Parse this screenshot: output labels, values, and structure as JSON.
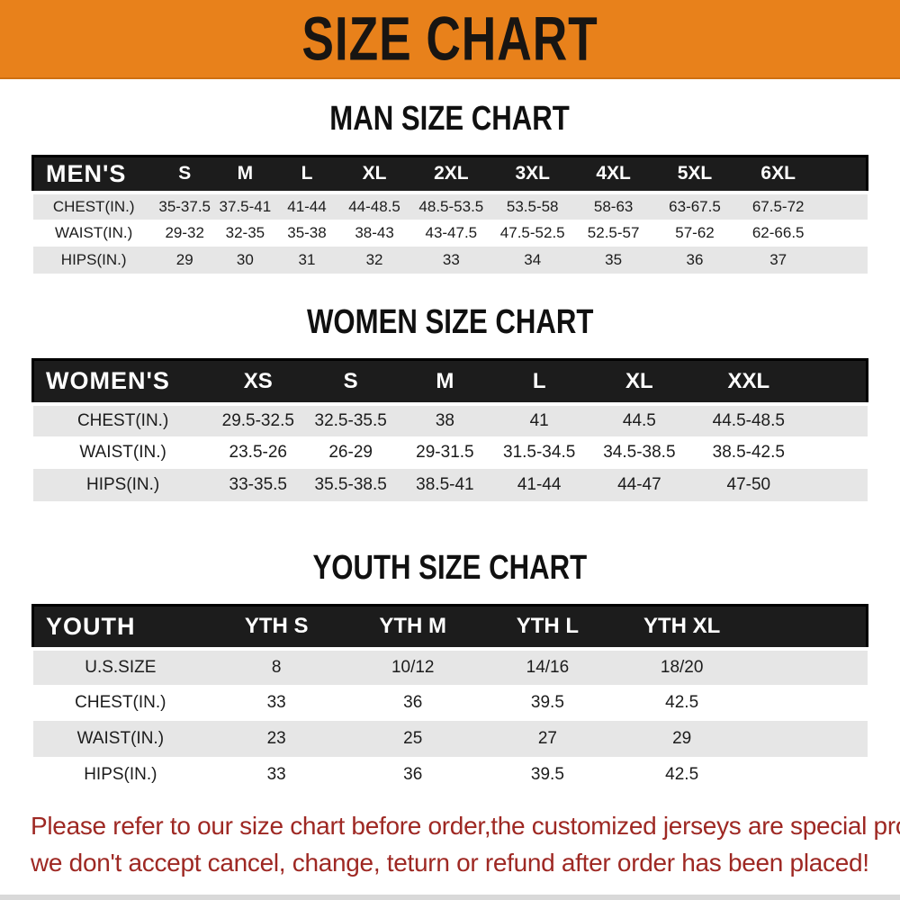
{
  "banner": {
    "title": "SIZE CHART",
    "bg_color": "#e8811b",
    "text_color": "#181512"
  },
  "tables": [
    {
      "title": "MAN SIZE CHART",
      "header_label": "MEN'S",
      "columns": [
        "S",
        "M",
        "L",
        "XL",
        "2XL",
        "3XL",
        "4XL",
        "5XL",
        "6XL"
      ],
      "rows": [
        {
          "label": "CHEST(IN.)",
          "values": [
            "35-37.5",
            "37.5-41",
            "41-44",
            "44-48.5",
            "48.5-53.5",
            "53.5-58",
            "58-63",
            "63-67.5",
            "67.5-72"
          ]
        },
        {
          "label": "WAIST(IN.)",
          "values": [
            "29-32",
            "32-35",
            "35-38",
            "38-43",
            "43-47.5",
            "47.5-52.5",
            "52.5-57",
            "57-62",
            "62-66.5"
          ]
        },
        {
          "label": "HIPS(IN.)",
          "values": [
            "29",
            "30",
            "31",
            "32",
            "33",
            "34",
            "35",
            "36",
            "37"
          ]
        }
      ]
    },
    {
      "title": "WOMEN SIZE CHART",
      "header_label": "WOMEN'S",
      "columns": [
        "XS",
        "S",
        "M",
        "L",
        "XL",
        "XXL"
      ],
      "rows": [
        {
          "label": "CHEST(IN.)",
          "values": [
            "29.5-32.5",
            "32.5-35.5",
            "38",
            "41",
            "44.5",
            "44.5-48.5"
          ]
        },
        {
          "label": "WAIST(IN.)",
          "values": [
            "23.5-26",
            "26-29",
            "29-31.5",
            "31.5-34.5",
            "34.5-38.5",
            "38.5-42.5"
          ]
        },
        {
          "label": "HIPS(IN.)",
          "values": [
            "33-35.5",
            "35.5-38.5",
            "38.5-41",
            "41-44",
            "44-47",
            "47-50"
          ]
        }
      ]
    },
    {
      "title": "YOUTH SIZE CHART",
      "header_label": "YOUTH",
      "columns": [
        "YTH S",
        "YTH M",
        "YTH L",
        "YTH XL"
      ],
      "rows": [
        {
          "label": "U.S.SIZE",
          "values": [
            "8",
            "10/12",
            "14/16",
            "18/20"
          ]
        },
        {
          "label": "CHEST(IN.)",
          "values": [
            "33",
            "36",
            "39.5",
            "42.5"
          ]
        },
        {
          "label": "WAIST(IN.)",
          "values": [
            "23",
            "25",
            "27",
            "29"
          ]
        },
        {
          "label": "HIPS(IN.)",
          "values": [
            "33",
            "36",
            "39.5",
            "42.5"
          ]
        }
      ]
    }
  ],
  "footer": {
    "line1": "Please refer to our size chart before order,the customized jerseys are special products,",
    "line2": "we don't accept cancel, change, teturn or refund after order has been placed!",
    "text_color": "#9e2823"
  }
}
